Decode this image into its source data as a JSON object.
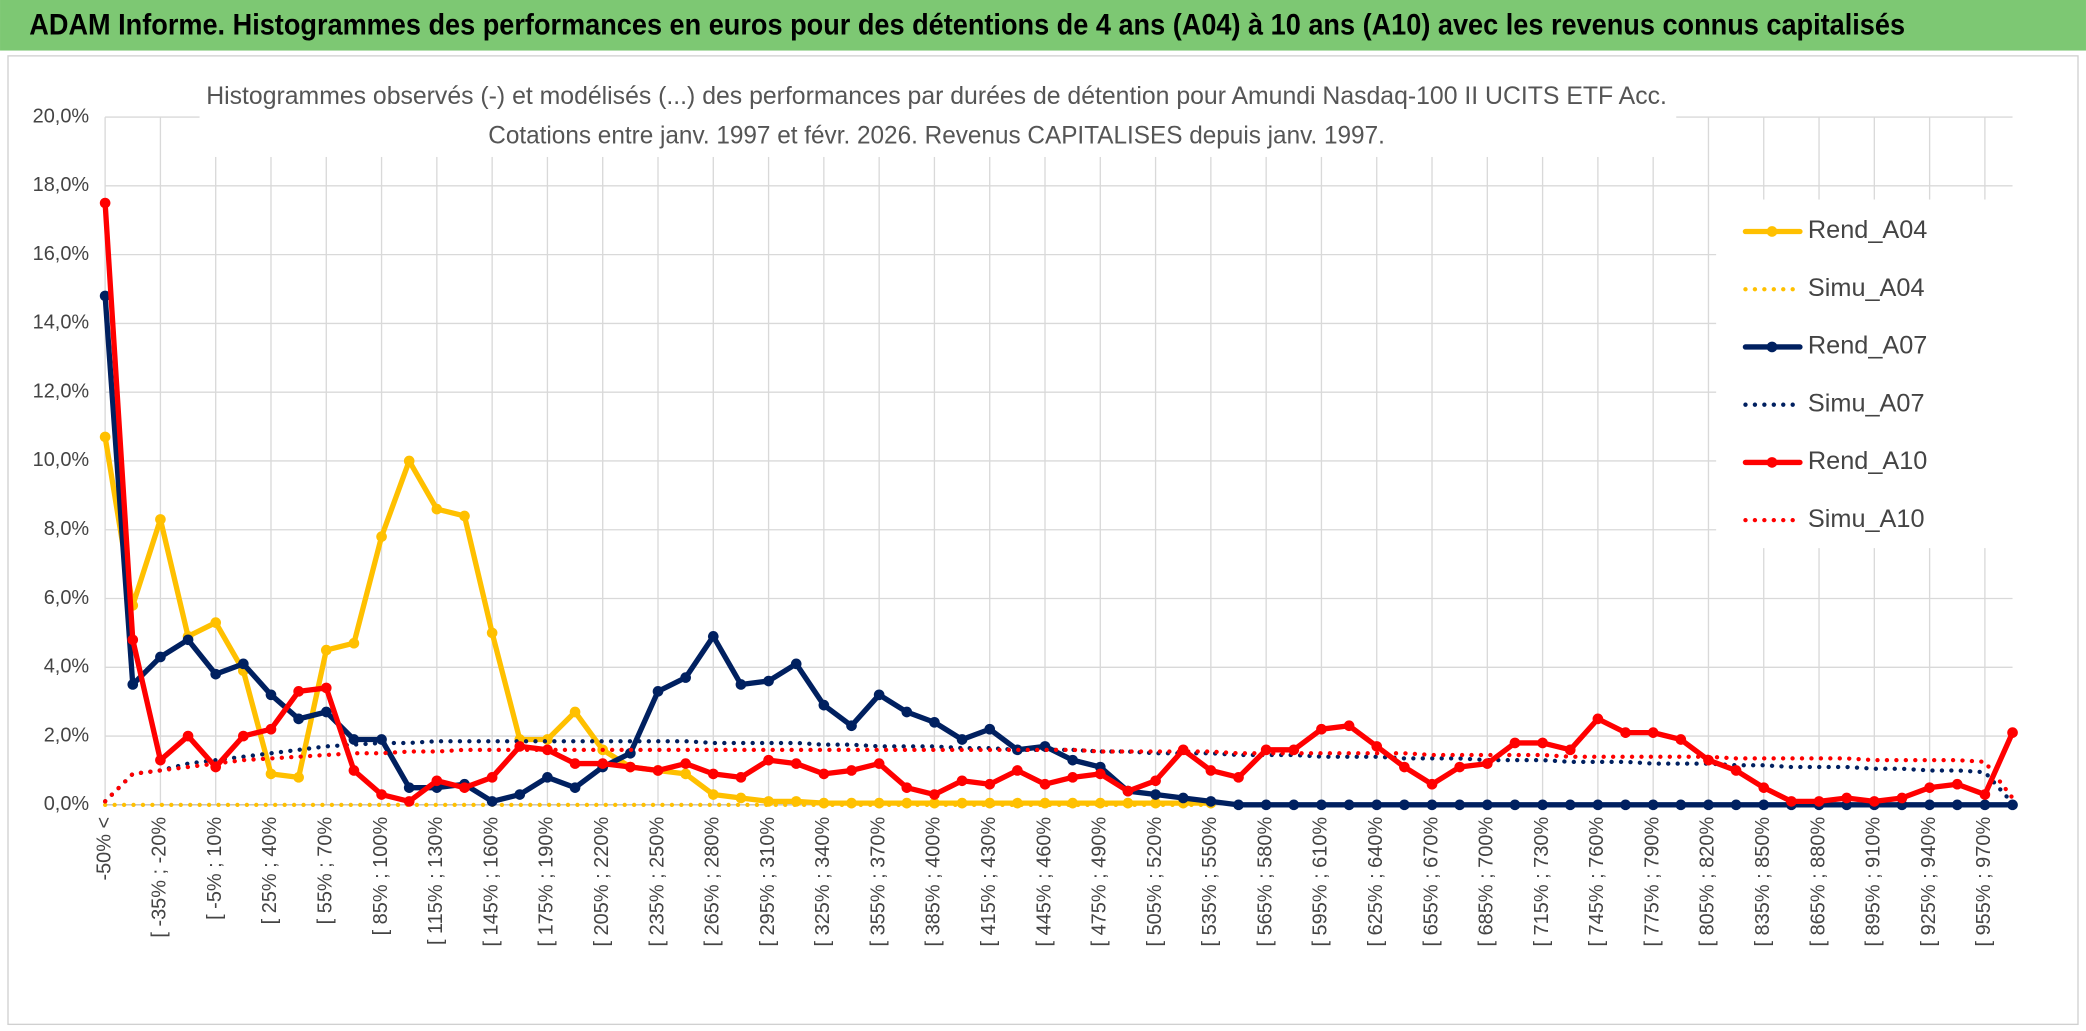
{
  "header": "ADAM Informe. Histogrammes des performances en euros pour des détentions de 4 ans (A04) à 10 ans (A10) avec les revenus connus capitalisés",
  "chart_data": {
    "type": "line",
    "title": "Histogrammes observés (-) et modélisés (...) des performances par durées de détention pour Amundi Nasdaq-100 II UCITS ETF Acc.",
    "subtitle": "Cotations entre janv. 1997 et févr. 2026. Revenus CAPITALISES depuis janv. 1997.",
    "categories": [
      "-50% <",
      null,
      "[ -35% ; -20%",
      null,
      "[ -5% ; 10%",
      null,
      "[ 25% ; 40%",
      null,
      "[ 55% ; 70%",
      null,
      "[ 85% ; 100%",
      null,
      "[ 115% ; 130%",
      null,
      "[ 145% ; 160%",
      null,
      "[ 175% ; 190%",
      null,
      "[ 205% ; 220%",
      null,
      "[ 235% ; 250%",
      null,
      "[ 265% ; 280%",
      null,
      "[ 295% ; 310%",
      null,
      "[ 325% ; 340%",
      null,
      "[ 355% ; 370%",
      null,
      "[ 385% ; 400%",
      null,
      "[ 415% ; 430%",
      null,
      "[ 445% ; 460%",
      null,
      "[ 475% ; 490%",
      null,
      "[ 505% ; 520%",
      null,
      "[ 535% ; 550%",
      null,
      "[ 565% ; 580%",
      null,
      "[ 595% ; 610%",
      null,
      "[ 625% ; 640%",
      null,
      "[ 655% ; 670%",
      null,
      "[ 685% ; 700%",
      null,
      "[ 715% ; 730%",
      null,
      "[ 745% ; 760%",
      null,
      "[ 775% ; 790%",
      null,
      "[ 805% ; 820%",
      null,
      "[ 835% ; 850%",
      null,
      "[ 865% ; 880%",
      null,
      "[ 895% ; 910%",
      null,
      "[ 925% ; 940%",
      null,
      "[ 955% ; 970%",
      null
    ],
    "ylim": [
      0,
      20
    ],
    "yticks": [
      {
        "value": 0,
        "label": "0,0%"
      },
      {
        "value": 2,
        "label": "2,0%"
      },
      {
        "value": 4,
        "label": "4,0%"
      },
      {
        "value": 6,
        "label": "6,0%"
      },
      {
        "value": 8,
        "label": "8,0%"
      },
      {
        "value": 10,
        "label": "10,0%"
      },
      {
        "value": 12,
        "label": "12,0%"
      },
      {
        "value": 14,
        "label": "14,0%"
      },
      {
        "value": 16,
        "label": "16,0%"
      },
      {
        "value": 18,
        "label": "18,0%"
      },
      {
        "value": 20,
        "label": "20,0%"
      }
    ],
    "grid": true,
    "legend": "right",
    "series": [
      {
        "name": "Rend_A04",
        "color": "#ffc000",
        "dash": false,
        "values": [
          10.7,
          5.8,
          8.3,
          4.9,
          5.3,
          3.9,
          0.9,
          0.8,
          4.5,
          4.7,
          7.8,
          10.0,
          8.6,
          8.4,
          5.0,
          1.9,
          1.9,
          2.7,
          1.6,
          1.1,
          1.0,
          0.9,
          0.3,
          0.2,
          0.1,
          0.1,
          0.05,
          0.05,
          0.05,
          0.05,
          0.05,
          0.05,
          0.05,
          0.05,
          0.05,
          0.05,
          0.05,
          0.05,
          0.05,
          0.05,
          0.05,
          null,
          null,
          null,
          null,
          null,
          null,
          null,
          null,
          null,
          null,
          null,
          null,
          null,
          null,
          null,
          null,
          null,
          null,
          null,
          null,
          null,
          null,
          null,
          null,
          null,
          null,
          null,
          null,
          null
        ]
      },
      {
        "name": "Simu_A04",
        "color": "#ffc000",
        "dash": true,
        "values": [
          0,
          0,
          0,
          0,
          0,
          0,
          0,
          0,
          0,
          0,
          0,
          0,
          0,
          0,
          0,
          0,
          0,
          0,
          0,
          0,
          0,
          0,
          0,
          0,
          0,
          0,
          0,
          0,
          0,
          0,
          0,
          0,
          0,
          0,
          0,
          0,
          0,
          0,
          0,
          0,
          0,
          null,
          null,
          null,
          null,
          null,
          null,
          null,
          null,
          null,
          null,
          null,
          null,
          null,
          null,
          null,
          null,
          null,
          null,
          null,
          null,
          null,
          null,
          null,
          null,
          null,
          null,
          null,
          null,
          null
        ]
      },
      {
        "name": "Rend_A07",
        "color": "#002060",
        "dash": false,
        "values": [
          14.8,
          3.5,
          4.3,
          4.8,
          3.8,
          4.1,
          3.2,
          2.5,
          2.7,
          1.9,
          1.9,
          0.5,
          0.5,
          0.6,
          0.1,
          0.3,
          0.8,
          0.5,
          1.1,
          1.5,
          3.3,
          3.7,
          4.9,
          3.5,
          3.6,
          4.1,
          2.9,
          2.3,
          3.2,
          2.7,
          2.4,
          1.9,
          2.2,
          1.6,
          1.7,
          1.3,
          1.1,
          0.4,
          0.3,
          0.2,
          0.1,
          0,
          0,
          0,
          0,
          0,
          0,
          0,
          0,
          0,
          0,
          0,
          0,
          0,
          0,
          0,
          0,
          0,
          0,
          0,
          0,
          0,
          0,
          0,
          0,
          0,
          0,
          0,
          0,
          0
        ]
      },
      {
        "name": "Simu_A07",
        "color": "#002060",
        "dash": true,
        "values": [
          0.1,
          0.9,
          1.0,
          1.2,
          1.3,
          1.4,
          1.5,
          1.6,
          1.7,
          1.75,
          1.8,
          1.8,
          1.85,
          1.85,
          1.85,
          1.85,
          1.85,
          1.85,
          1.85,
          1.85,
          1.85,
          1.85,
          1.8,
          1.8,
          1.8,
          1.8,
          1.75,
          1.75,
          1.7,
          1.7,
          1.7,
          1.65,
          1.65,
          1.6,
          1.6,
          1.6,
          1.55,
          1.55,
          1.5,
          1.5,
          1.5,
          1.45,
          1.45,
          1.45,
          1.4,
          1.4,
          1.4,
          1.35,
          1.35,
          1.35,
          1.3,
          1.3,
          1.3,
          1.25,
          1.25,
          1.25,
          1.2,
          1.2,
          1.2,
          1.15,
          1.15,
          1.1,
          1.1,
          1.1,
          1.05,
          1.05,
          1.0,
          1.0,
          0.95,
          0.05
        ]
      },
      {
        "name": "Rend_A10",
        "color": "#ff0000",
        "dash": false,
        "values": [
          17.5,
          4.8,
          1.3,
          2.0,
          1.1,
          2.0,
          2.2,
          3.3,
          3.4,
          1.0,
          0.3,
          0.1,
          0.7,
          0.5,
          0.8,
          1.7,
          1.6,
          1.2,
          1.2,
          1.1,
          1.0,
          1.2,
          0.9,
          0.8,
          1.3,
          1.2,
          0.9,
          1.0,
          1.2,
          0.5,
          0.3,
          0.7,
          0.6,
          1.0,
          0.6,
          0.8,
          0.9,
          0.4,
          0.7,
          1.6,
          1.0,
          0.8,
          1.6,
          1.6,
          2.2,
          2.3,
          1.7,
          1.1,
          0.6,
          1.1,
          1.2,
          1.8,
          1.8,
          1.6,
          2.5,
          2.1,
          2.1,
          1.9,
          1.3,
          1.0,
          0.5,
          0.1,
          0.1,
          0.2,
          0.1,
          0.2,
          0.5,
          0.6,
          0.3,
          2.1
        ]
      },
      {
        "name": "Simu_A10",
        "color": "#ff0000",
        "dash": true,
        "values": [
          0.1,
          0.9,
          1.0,
          1.1,
          1.2,
          1.3,
          1.35,
          1.4,
          1.45,
          1.5,
          1.5,
          1.55,
          1.55,
          1.6,
          1.6,
          1.6,
          1.6,
          1.6,
          1.6,
          1.6,
          1.6,
          1.6,
          1.6,
          1.6,
          1.6,
          1.6,
          1.6,
          1.6,
          1.6,
          1.6,
          1.6,
          1.6,
          1.6,
          1.6,
          1.6,
          1.6,
          1.55,
          1.55,
          1.55,
          1.55,
          1.55,
          1.5,
          1.5,
          1.5,
          1.5,
          1.5,
          1.5,
          1.5,
          1.45,
          1.45,
          1.45,
          1.45,
          1.45,
          1.4,
          1.4,
          1.4,
          1.4,
          1.4,
          1.4,
          1.35,
          1.35,
          1.35,
          1.35,
          1.35,
          1.3,
          1.3,
          1.3,
          1.3,
          1.25,
          0.2
        ]
      }
    ]
  }
}
